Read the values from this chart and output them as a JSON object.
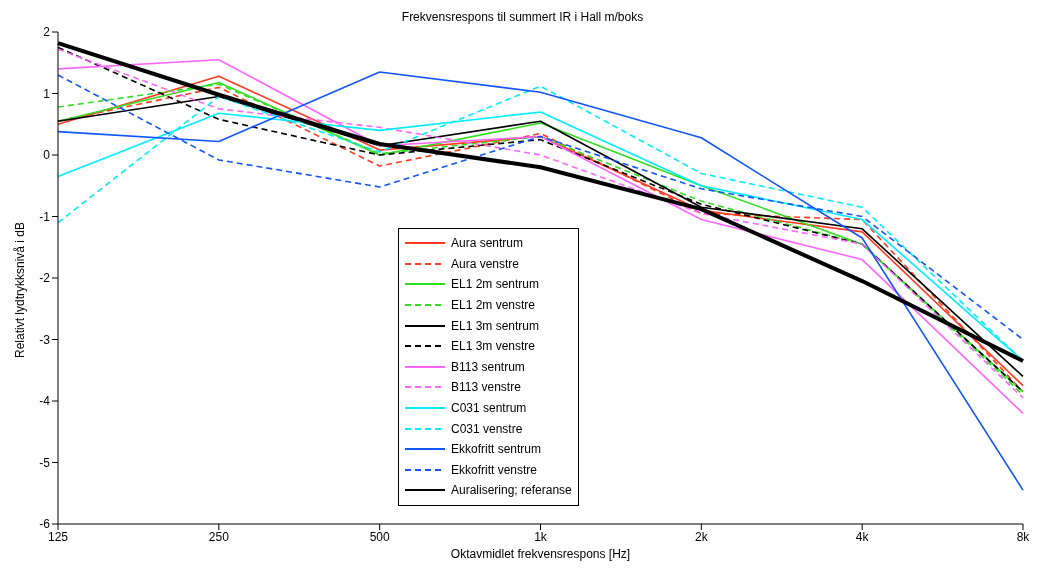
{
  "chart_data": {
    "type": "line",
    "title": "Frekvensrespons til summert IR i Hall m/boks",
    "xlabel": "Oktavmidlet frekvensrespons [Hz]",
    "ylabel": "Relativt lydtrykksnivå i dB",
    "categories": [
      "125",
      "250",
      "500",
      "1k",
      "2k",
      "4k",
      "8k"
    ],
    "ylim": [
      -6,
      2
    ],
    "yticks": [
      -6,
      -5,
      -4,
      -3,
      -2,
      -1,
      0,
      1,
      2
    ],
    "legend": "center",
    "marker": "none",
    "series": [
      {
        "name": "Aura sentrum",
        "color": "#ff3b1f",
        "line_style": "solid",
        "values": [
          0.5,
          1.28,
          0.08,
          0.3,
          -0.9,
          -1.25,
          -3.75
        ]
      },
      {
        "name": "Aura venstre",
        "color": "#ff3b1f",
        "line_style": "dashed",
        "values": [
          0.55,
          1.1,
          -0.18,
          0.35,
          -0.95,
          -1.05,
          -3.85
        ]
      },
      {
        "name": "EL1 2m sentrum",
        "color": "#33dd22",
        "line_style": "solid",
        "values": [
          0.55,
          1.18,
          0.0,
          0.52,
          -0.5,
          -1.45,
          -3.85
        ]
      },
      {
        "name": "EL1 2m venstre",
        "color": "#33dd22",
        "line_style": "dashed",
        "values": [
          0.78,
          1.15,
          0.02,
          0.3,
          -0.75,
          -1.45,
          -3.9
        ]
      },
      {
        "name": "EL1 3m sentrum",
        "color": "#000000",
        "line_style": "solid",
        "values": [
          0.55,
          0.95,
          0.15,
          0.55,
          -0.85,
          -1.2,
          -3.6
        ]
      },
      {
        "name": "EL1 3m venstre",
        "color": "#000000",
        "line_style": "dashed",
        "values": [
          1.75,
          0.58,
          0.0,
          0.25,
          -0.8,
          -1.45,
          -3.85
        ]
      },
      {
        "name": "B113 sentrum",
        "color": "#ff66ff",
        "line_style": "solid",
        "values": [
          1.4,
          1.55,
          0.15,
          0.3,
          -1.05,
          -1.7,
          -4.2
        ]
      },
      {
        "name": "B113 venstre",
        "color": "#ff66ff",
        "line_style": "dashed",
        "values": [
          1.72,
          0.75,
          0.45,
          0.0,
          -0.95,
          -1.45,
          -3.95
        ]
      },
      {
        "name": "C031 sentrum",
        "color": "#00eeff",
        "line_style": "solid",
        "values": [
          -0.35,
          0.68,
          0.4,
          0.7,
          -0.5,
          -1.05,
          -3.35
        ]
      },
      {
        "name": "C031 venstre",
        "color": "#00eeff",
        "line_style": "dashed",
        "values": [
          -1.1,
          0.95,
          0.05,
          1.12,
          -0.3,
          -0.85,
          -3.35
        ]
      },
      {
        "name": "Ekkofritt sentrum",
        "color": "#1155ff",
        "line_style": "solid",
        "values": [
          0.38,
          0.22,
          1.35,
          1.02,
          0.28,
          -1.35,
          -5.45
        ]
      },
      {
        "name": "Ekkofritt venstre",
        "color": "#1155ff",
        "line_style": "dashed",
        "values": [
          1.3,
          -0.08,
          -0.52,
          0.3,
          -0.55,
          -1.0,
          -3.0
        ]
      },
      {
        "name": "Auralisering; referanse",
        "color": "#000000",
        "line_style": "solid",
        "values": [
          1.82,
          0.98,
          0.18,
          -0.2,
          -0.88,
          -2.05,
          -3.35
        ]
      }
    ]
  }
}
